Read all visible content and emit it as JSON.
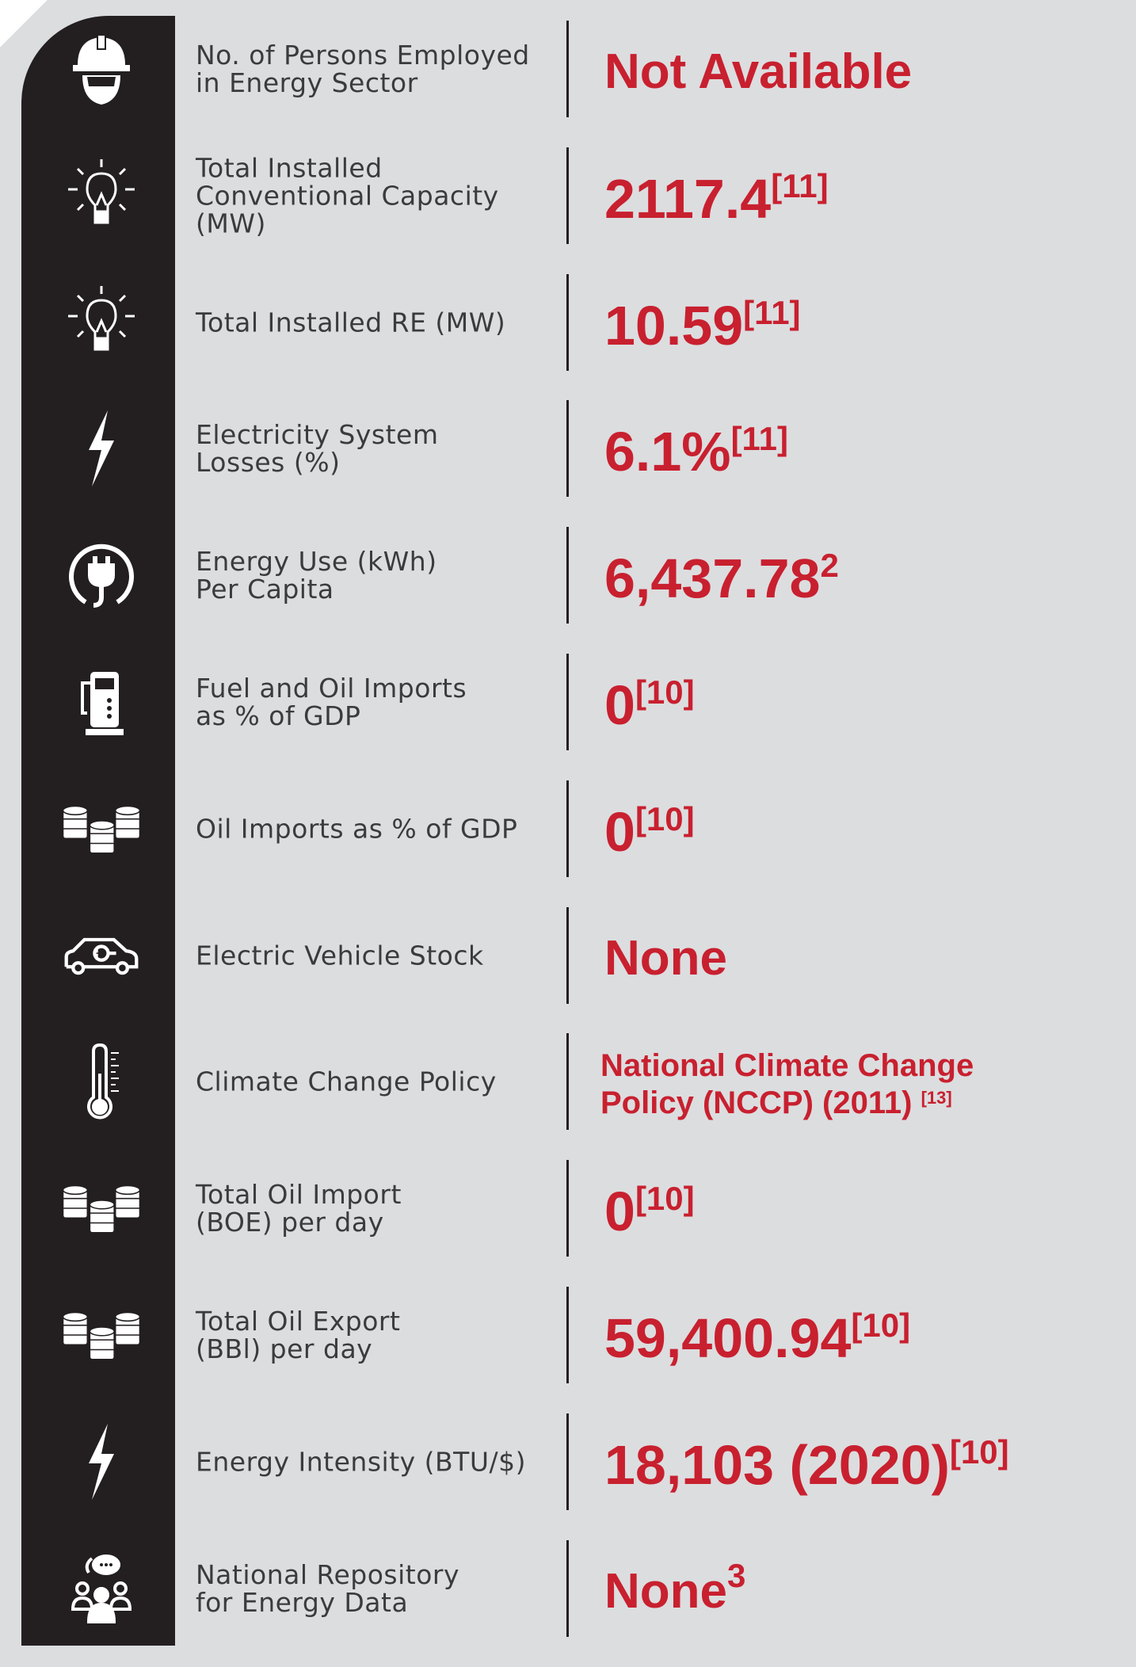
{
  "rows": [
    {
      "label": [
        "No. of Persons Employed",
        "in Energy Sector"
      ],
      "value": "Not Available"
    },
    {
      "label": [
        "Total Installed",
        "Conventional Capacity",
        "(MW)"
      ],
      "value": "2117.4",
      "note": "[11]"
    },
    {
      "label": [
        "Total Installed RE (MW)"
      ],
      "value": "10.59",
      "note": "[11]"
    },
    {
      "label": [
        "Electricity System",
        "Losses (%)"
      ],
      "value": "6.1%",
      "note": "[11]"
    },
    {
      "label": [
        "Energy Use (kWh)",
        "Per Capita"
      ],
      "value": "6,437.78",
      "note": "2"
    },
    {
      "label": [
        "Fuel and Oil Imports",
        "as % of GDP"
      ],
      "value": "0",
      "note": "[10]"
    },
    {
      "label": [
        "Oil Imports as % of GDP"
      ],
      "value": "0",
      "note": "[10]"
    },
    {
      "label": [
        "Electric Vehicle Stock"
      ],
      "value": "None"
    },
    {
      "label": [
        "Climate Change Policy"
      ],
      "value": "National Climate Change Policy (NCCP) (2011)",
      "note": "[13]"
    },
    {
      "label": [
        "Total Oil Import",
        "(BOE) per day"
      ],
      "value": "0",
      "note": "[10]"
    },
    {
      "label": [
        "Total Oil Export",
        "(BBl) per day"
      ],
      "value": "59,400.94",
      "note": "[10]"
    },
    {
      "label": [
        "Energy Intensity (BTU/$)"
      ],
      "value": "18,103 (2020)",
      "note": "[10]"
    },
    {
      "label": [
        "National Repository",
        "for Energy Data"
      ],
      "value": "None",
      "note": "3"
    }
  ]
}
